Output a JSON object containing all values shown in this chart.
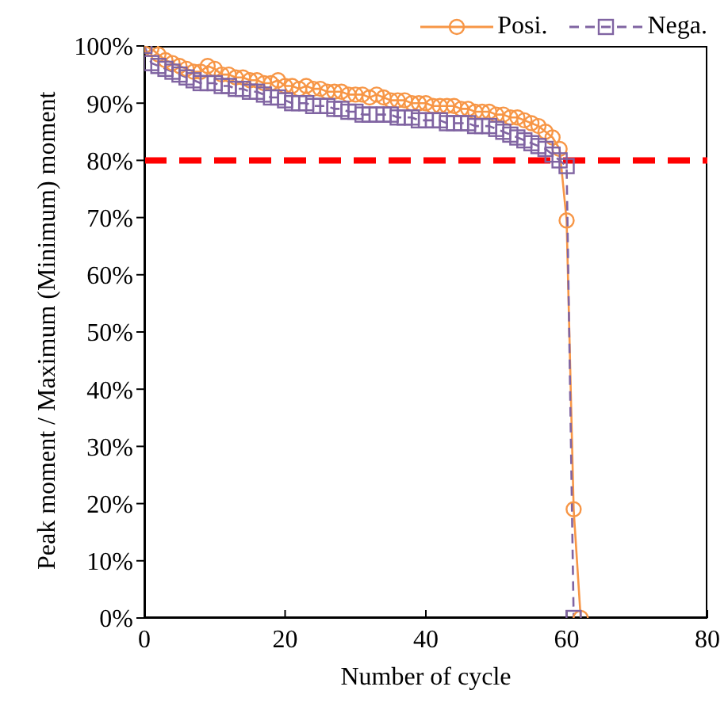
{
  "chart_data": {
    "type": "line",
    "xlabel": "Number of  cycle",
    "ylabel": "Peak moment / Maximum (Minimum) moment",
    "xlim": [
      0,
      80
    ],
    "xticks": [
      0,
      20,
      40,
      60,
      80
    ],
    "ylim": [
      0,
      100
    ],
    "yticks": [
      {
        "value": 0,
        "label": "0%"
      },
      {
        "value": 10,
        "label": "10%"
      },
      {
        "value": 20,
        "label": "20%"
      },
      {
        "value": 30,
        "label": "30%"
      },
      {
        "value": 40,
        "label": "40%"
      },
      {
        "value": 50,
        "label": "50%"
      },
      {
        "value": 60,
        "label": "60%"
      },
      {
        "value": 70,
        "label": "70%"
      },
      {
        "value": 80,
        "label": "80%"
      },
      {
        "value": 90,
        "label": "90%"
      },
      {
        "value": 100,
        "label": "100%"
      }
    ],
    "legend": "top right",
    "ref_lines": [
      {
        "axis": "y",
        "value": 80,
        "label": null,
        "color": "#ff0000",
        "line_style": "dashed"
      }
    ],
    "series": [
      {
        "name": "Posi.",
        "color": "#f79646",
        "marker": "circle",
        "line_style": "solid",
        "x": [
          0,
          1,
          2,
          3,
          4,
          5,
          6,
          7,
          8,
          9,
          10,
          11,
          12,
          13,
          14,
          15,
          16,
          17,
          18,
          19,
          20,
          21,
          22,
          23,
          24,
          25,
          26,
          27,
          28,
          29,
          30,
          31,
          32,
          33,
          34,
          35,
          36,
          37,
          38,
          39,
          40,
          41,
          42,
          43,
          44,
          45,
          46,
          47,
          48,
          49,
          50,
          51,
          52,
          53,
          54,
          55,
          56,
          57,
          58,
          59,
          60,
          61,
          62
        ],
        "values": [
          100,
          99.5,
          98.5,
          97.5,
          97,
          96.5,
          96,
          95.5,
          95.5,
          96.5,
          96,
          95,
          95,
          94.5,
          94.5,
          94,
          94,
          93.5,
          93.5,
          94,
          93,
          93,
          92.5,
          93,
          92.5,
          92.5,
          92,
          92,
          92,
          91.5,
          91.5,
          91.5,
          91,
          91.5,
          91,
          90.5,
          90.5,
          90.5,
          90,
          90,
          90,
          89.5,
          89.5,
          89.5,
          89.5,
          89,
          89,
          88.5,
          88.5,
          88.5,
          88,
          88,
          87.5,
          87.5,
          87,
          86.5,
          86,
          85,
          84,
          82,
          69.5,
          19,
          0
        ]
      },
      {
        "name": "Nega.",
        "color": "#8064a2",
        "marker": "square",
        "line_style": "dashed",
        "x": [
          0,
          1,
          2,
          3,
          4,
          5,
          6,
          7,
          8,
          9,
          10,
          11,
          12,
          13,
          14,
          15,
          16,
          17,
          18,
          19,
          20,
          21,
          22,
          23,
          24,
          25,
          26,
          27,
          28,
          29,
          30,
          31,
          32,
          33,
          34,
          35,
          36,
          37,
          38,
          39,
          40,
          41,
          42,
          43,
          44,
          45,
          46,
          47,
          48,
          49,
          50,
          51,
          52,
          53,
          54,
          55,
          56,
          57,
          58,
          59,
          60,
          61
        ],
        "values": [
          100,
          97,
          96.5,
          96,
          95.5,
          95,
          94.5,
          94,
          93.5,
          93.5,
          93.5,
          93,
          93,
          92.5,
          92.5,
          92,
          92,
          91.5,
          91,
          91,
          90.5,
          90,
          90,
          90,
          89.5,
          89.5,
          89.5,
          89,
          89,
          88.5,
          88.5,
          88,
          88,
          88,
          88,
          88,
          87.5,
          87.5,
          87.5,
          87,
          87,
          87,
          87,
          86.5,
          86.5,
          86.5,
          86.5,
          86,
          86,
          86,
          85.5,
          85,
          84.5,
          84,
          83.5,
          83,
          82.5,
          82,
          81,
          80,
          79,
          0
        ]
      }
    ]
  }
}
